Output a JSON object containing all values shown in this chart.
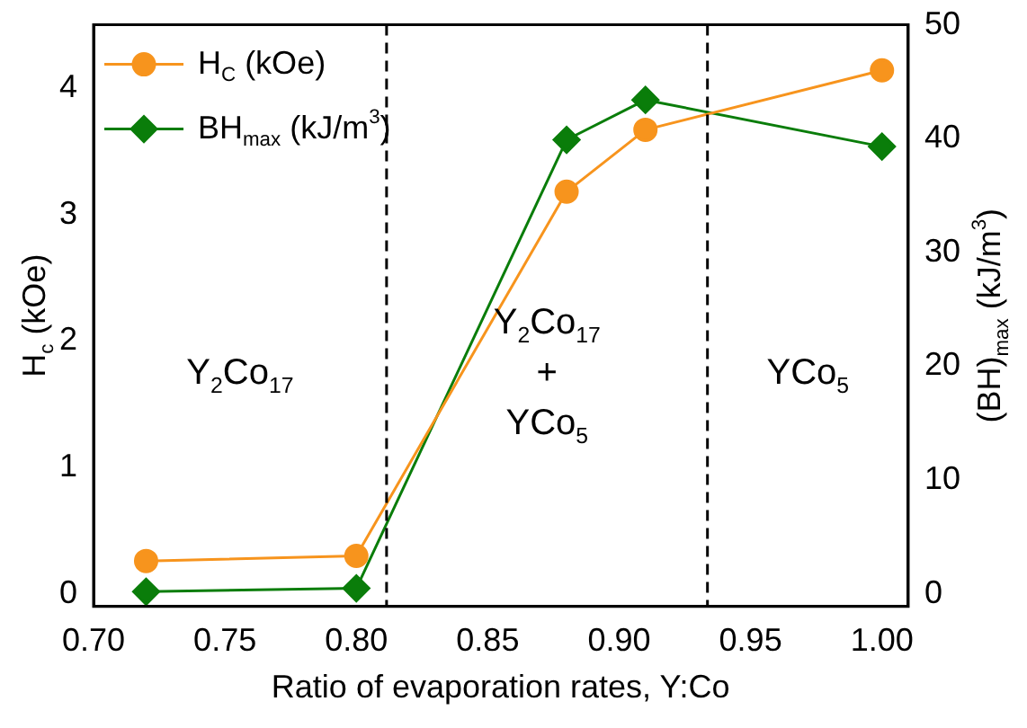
{
  "chart_data": {
    "type": "line",
    "xlabel": "Ratio of evaporation rates, Y:Co",
    "ylabel": "H$_{c}$ (kOe)",
    "y2label": "(BH)$_{max}$ (kJ/m$^{3}$)",
    "x": [
      0.72,
      0.8,
      0.88,
      0.91,
      1.0
    ],
    "series": [
      {
        "name": "H$_{C}$ (kOe)",
        "color": "#f7941d",
        "marker": "circle",
        "values": [
          0.26,
          0.3,
          3.18,
          3.67,
          4.14
        ]
      },
      {
        "name": "BH$_{max}$ (kJ/m$^{3}$)",
        "color": "#0a7d0a",
        "marker": "diamond",
        "axis": "y2",
        "values": [
          0.2,
          0.5,
          39.9,
          43.4,
          39.3
        ]
      }
    ],
    "xlim": [
      0.7,
      1.01
    ],
    "xticks": [
      {
        "value": 0.7,
        "label": "0.70"
      },
      {
        "value": 0.75,
        "label": "0.75"
      },
      {
        "value": 0.8,
        "label": "0.80"
      },
      {
        "value": 0.85,
        "label": "0.85"
      },
      {
        "value": 0.9,
        "label": "0.90"
      },
      {
        "value": 0.95,
        "label": "0.95"
      },
      {
        "value": 1.0,
        "label": "1.00"
      }
    ],
    "ylim": [
      -0.1,
      4.5
    ],
    "yticks": [
      0,
      1,
      2,
      3,
      4
    ],
    "y2lim": [
      -1.1,
      50
    ],
    "y2ticks": [
      0,
      10,
      20,
      30,
      40,
      50
    ],
    "ref_lines": [
      {
        "axis": "x",
        "value": 0.8115,
        "line_style": "dashed",
        "color": "#000000"
      },
      {
        "axis": "x",
        "value": 0.9336,
        "line_style": "dashed",
        "color": "#000000"
      }
    ],
    "annotations": [
      "Y$_{2}$Co$_{17}$",
      "Y$_{2}$Co$_{17}$\n+\nYCo$_{5}$",
      "YCo$_{5}$"
    ],
    "legend": "top left",
    "grid": false,
    "line_style": "solid"
  }
}
